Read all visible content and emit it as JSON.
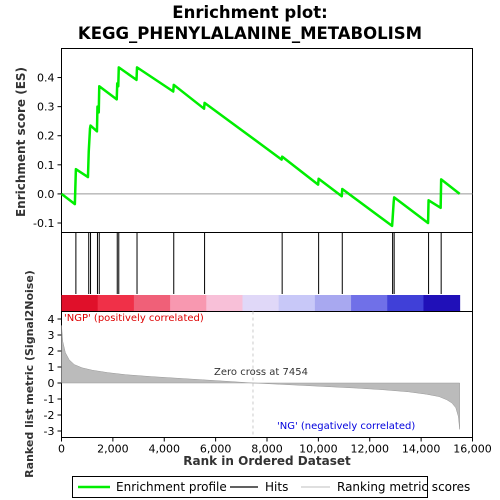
{
  "chart_data": {
    "type": "line",
    "title_line1": "Enrichment plot:",
    "title_line2": "KEGG_PHENYLALANINE_METABOLISM",
    "es_ylabel": "Enrichment score (ES)",
    "rank_ylabel": "Ranked list metric (Signal2Noise)",
    "xlabel": "Rank in Ordered Dataset",
    "xlim": [
      0,
      16000
    ],
    "es_ylim": [
      -0.13,
      0.47
    ],
    "rank_ylim": [
      -3.2,
      4.3
    ],
    "x_ticks": [
      0,
      2000,
      4000,
      6000,
      8000,
      10000,
      12000,
      14000,
      16000
    ],
    "x_tick_labels": [
      "0",
      "2,000",
      "4,000",
      "6,000",
      "8,000",
      "10,000",
      "12,000",
      "14,000",
      "16,000"
    ],
    "es_ticks": [
      -0.1,
      0.0,
      0.1,
      0.2,
      0.3,
      0.4
    ],
    "es_tick_labels": [
      "-0.1",
      "0.0",
      "0.1",
      "0.2",
      "0.3",
      "0.4"
    ],
    "rank_ticks": [
      -3,
      -2,
      -1,
      0,
      1,
      2,
      3,
      4
    ],
    "rank_tick_labels": [
      "-3",
      "-2",
      "-1",
      "0",
      "1",
      "2",
      "3",
      "4"
    ],
    "total_rank": 15500,
    "hits": [
      560,
      1060,
      1130,
      1400,
      1470,
      2170,
      2230,
      2940,
      4370,
      5570,
      8590,
      10010,
      10930,
      12890,
      12950,
      14290,
      14780
    ],
    "enrichment_profile": {
      "x": [
        0,
        520,
        560,
        1030,
        1060,
        1110,
        1130,
        1380,
        1400,
        1450,
        1470,
        2150,
        2170,
        2210,
        2230,
        2920,
        2940,
        4350,
        4370,
        5550,
        5570,
        8570,
        8590,
        9990,
        10010,
        10910,
        10930,
        12870,
        12890,
        12930,
        12950,
        14270,
        14290,
        14760,
        14780,
        15500
      ],
      "es": [
        0.0,
        -0.035,
        0.085,
        0.058,
        0.145,
        0.225,
        0.235,
        0.215,
        0.3,
        0.28,
        0.37,
        0.325,
        0.38,
        0.37,
        0.435,
        0.392,
        0.435,
        0.352,
        0.375,
        0.293,
        0.313,
        0.118,
        0.128,
        0.032,
        0.052,
        -0.008,
        0.017,
        -0.11,
        -0.085,
        -0.03,
        -0.012,
        -0.1,
        -0.022,
        -0.048,
        0.05,
        0.0
      ]
    },
    "ranked_metric": {
      "x": [
        0,
        50,
        150,
        300,
        500,
        800,
        1200,
        1800,
        2500,
        3500,
        4500,
        5500,
        6500,
        7454,
        8500,
        9500,
        10500,
        11500,
        12500,
        13500,
        14200,
        14700,
        15000,
        15200,
        15350,
        15450,
        15500
      ],
      "y": [
        3.6,
        2.6,
        1.9,
        1.45,
        1.15,
        0.95,
        0.8,
        0.65,
        0.52,
        0.4,
        0.3,
        0.2,
        0.1,
        0.0,
        -0.08,
        -0.16,
        -0.24,
        -0.32,
        -0.42,
        -0.55,
        -0.7,
        -0.85,
        -1.05,
        -1.25,
        -1.55,
        -2.1,
        -2.9
      ]
    },
    "zero_cross_label": "Zero cross at 7454",
    "zero_cross": 7454,
    "pos_label": "'NGP' (positively correlated)",
    "neg_label": "'NG' (negatively correlated)",
    "colors": {
      "profile": "#00ee00",
      "hits": "#000000",
      "metric_fill": "#bbbbbb",
      "pos_label": "#dd0000",
      "neg_label": "#0000dd",
      "zero_line": "#cccccc"
    },
    "heatbar_colors": [
      "#e0102a",
      "#f03048",
      "#f06078",
      "#f898b0",
      "#f8c0d8",
      "#e0d8f8",
      "#c8c8f8",
      "#a8a8f0",
      "#7070e8",
      "#4040d8",
      "#2010b8"
    ]
  },
  "legend": {
    "profile_label": "Enrichment profile",
    "hits_label": "Hits",
    "metric_label": "Ranking metric scores"
  }
}
